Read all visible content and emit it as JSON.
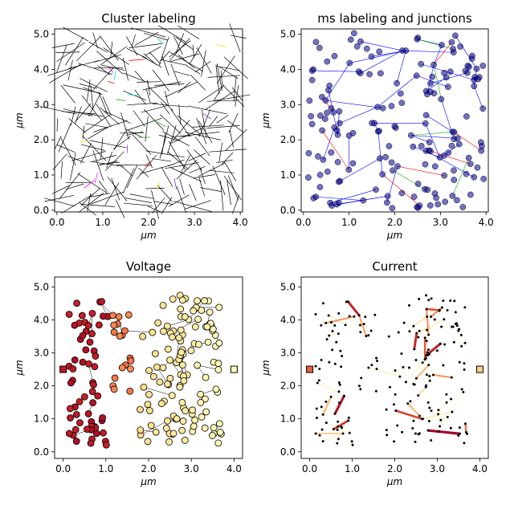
{
  "figure": {
    "background": "#ffffff"
  },
  "chart_data": [
    {
      "id": "cluster",
      "type": "scatter",
      "title": "Cluster labeling",
      "xlabel": "μm",
      "ylabel": "μm",
      "xlim": [
        -0.05,
        4.05
      ],
      "ylim": [
        -0.05,
        5.15
      ],
      "xticks": [
        "0.0",
        "1.0",
        "2.0",
        "3.0",
        "4.0"
      ],
      "yticks": [
        "0.0",
        "1.0",
        "2.0",
        "3.0",
        "4.0",
        "5.0"
      ],
      "line_color": "#000000",
      "accent_colors": [
        "#ff00ff",
        "#ff0000",
        "#00aa00",
        "#ffd700",
        "#00ced1",
        "#8a2be2"
      ],
      "segments_note": "many short black wire segments; a few colored isolated clusters"
    },
    {
      "id": "ms",
      "type": "scatter",
      "title": "ms labeling and junctions",
      "xlabel": "μm",
      "ylabel": "μm",
      "xlim": [
        -0.05,
        4.05
      ],
      "ylim": [
        -0.05,
        5.15
      ],
      "xticks": [
        "0.0",
        "1.0",
        "2.0",
        "3.0",
        "4.0"
      ],
      "yticks": [
        "0.0",
        "1.0",
        "2.0",
        "3.0",
        "4.0",
        "5.0"
      ],
      "line_color": "#0000ff",
      "junction_color": "#00008b",
      "accent_colors": [
        "#ff0000",
        "#00aa00"
      ]
    },
    {
      "id": "voltage",
      "type": "scatter",
      "title": "Voltage",
      "xlabel": "μm",
      "ylabel": "μm",
      "xlim": [
        -0.2,
        4.2
      ],
      "ylim": [
        -0.2,
        5.3
      ],
      "xticks": [
        "0.0",
        "1.0",
        "2.0",
        "3.0",
        "4.0"
      ],
      "yticks": [
        "0.0",
        "1.0",
        "2.0",
        "3.0",
        "4.0",
        "5.0"
      ],
      "colormap": [
        "#a50026",
        "#d73027",
        "#f46d43",
        "#fdae61",
        "#fee090",
        "#ffffbf"
      ],
      "electrodes": [
        {
          "x": 0.0,
          "y": 2.5
        },
        {
          "x": 4.0,
          "y": 2.5
        }
      ]
    },
    {
      "id": "current",
      "type": "scatter",
      "title": "Current",
      "xlabel": "μm",
      "ylabel": "μm",
      "xlim": [
        -0.2,
        4.2
      ],
      "ylim": [
        -0.2,
        5.3
      ],
      "xticks": [
        "0.0",
        "1.0",
        "2.0",
        "3.0",
        "4.0"
      ],
      "yticks": [
        "0.0",
        "1.0",
        "2.0",
        "3.0",
        "4.0",
        "5.0"
      ],
      "colormap": [
        "#fffbd5",
        "#fee090",
        "#fdae61",
        "#f46d43",
        "#d73027",
        "#a50026"
      ],
      "electrodes": [
        {
          "x": 0.0,
          "y": 2.5
        },
        {
          "x": 4.0,
          "y": 2.5
        }
      ]
    }
  ]
}
